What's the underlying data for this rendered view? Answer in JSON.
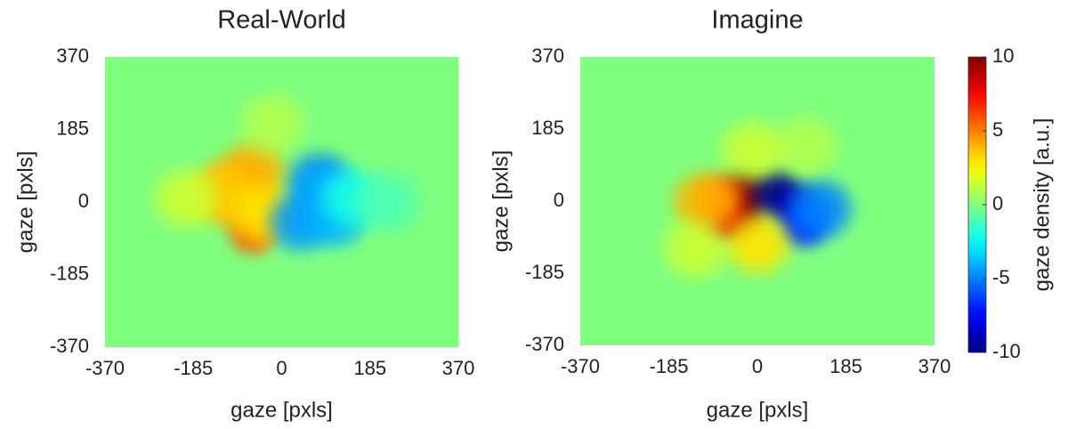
{
  "chart_data": [
    {
      "type": "heatmap",
      "title": "Real-World",
      "x_label": "gaze [pxls]",
      "y_label": "gaze [pxls]",
      "xlim": [
        -370,
        370
      ],
      "ylim": [
        -370,
        370
      ],
      "xticks": [
        -370,
        -185,
        0,
        185,
        370
      ],
      "yticks": [
        -370,
        -185,
        0,
        185,
        370
      ],
      "x": [
        -60,
        -80,
        -100,
        -60,
        -130,
        -200,
        -40,
        80,
        95,
        40,
        110,
        150,
        220,
        -20
      ],
      "y": [
        -75,
        0,
        40,
        80,
        20,
        10,
        -30,
        50,
        20,
        -50,
        -40,
        10,
        0,
        200
      ],
      "values": [
        6,
        5,
        4.5,
        4,
        3.5,
        1.5,
        3,
        -5,
        -4,
        -4.5,
        -4,
        -2,
        -1,
        1
      ]
    },
    {
      "type": "heatmap",
      "title": "Imagine",
      "x_label": "gaze [pxls]",
      "y_label": "gaze [pxls]",
      "xlim": [
        -370,
        370
      ],
      "ylim": [
        -370,
        370
      ],
      "xticks": [
        -370,
        -185,
        0,
        185,
        370
      ],
      "yticks": [
        -370,
        -185,
        0,
        185,
        370
      ],
      "x": [
        -30,
        -40,
        -80,
        -80,
        -110,
        40,
        80,
        100,
        130,
        0,
        -130,
        100,
        -10
      ],
      "y": [
        20,
        -40,
        -40,
        10,
        0,
        20,
        -10,
        -60,
        -20,
        -110,
        -120,
        140,
        130
      ],
      "values": [
        10,
        10,
        8,
        6,
        4,
        -10,
        -9,
        -7,
        -5,
        3,
        1.5,
        1,
        1.5
      ],
      "colorbar": {
        "label": "gaze density [a.u.]",
        "lim": [
          -10,
          10
        ],
        "ticks": [
          10,
          5,
          0,
          -5,
          -10
        ]
      }
    }
  ]
}
